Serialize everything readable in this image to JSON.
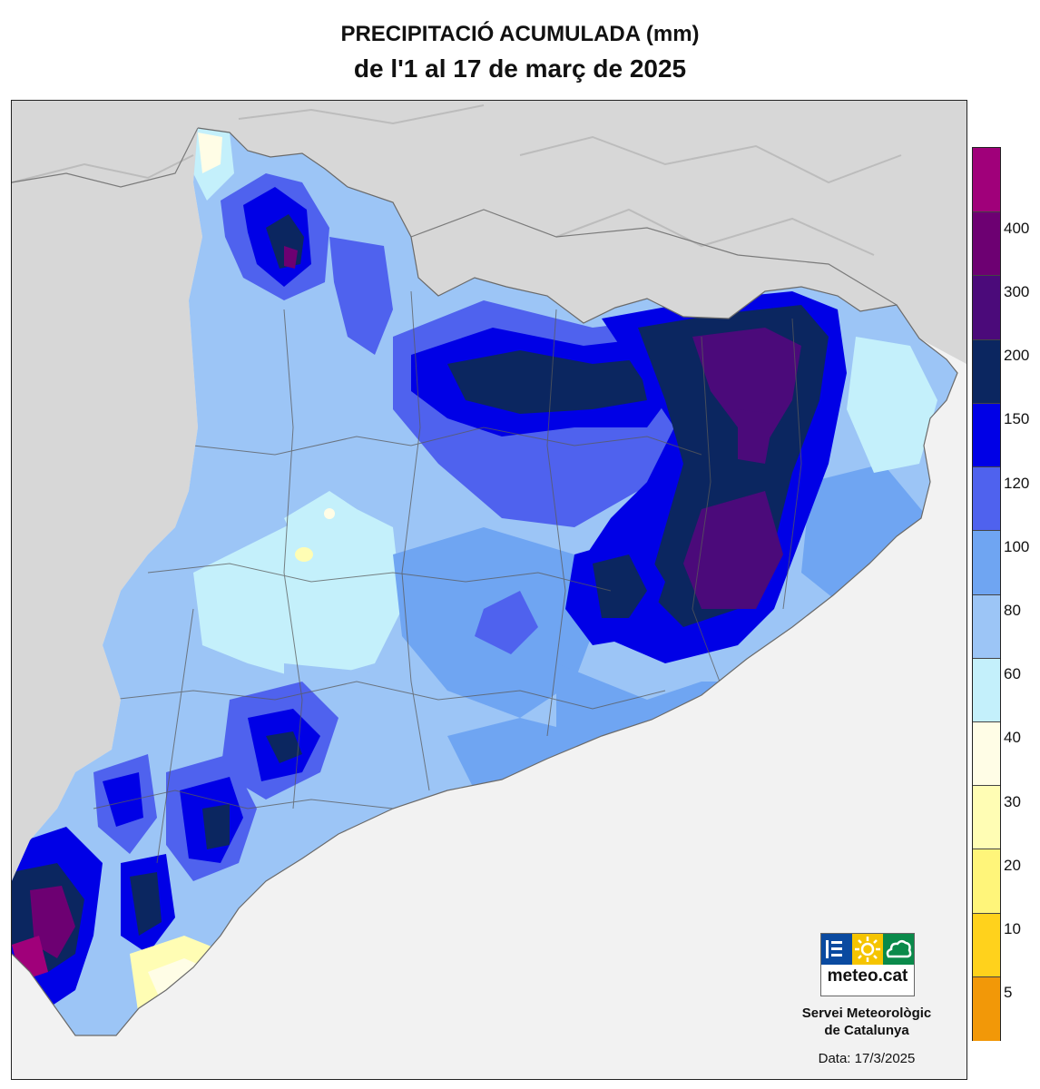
{
  "title": {
    "line1": "PRECIPITACIÓ ACUMULADA (mm)",
    "line2": "de l'1 al 17 de març de 2025"
  },
  "legend": {
    "classes": [
      {
        "label": "",
        "color": "#a0007a"
      },
      {
        "label": "400",
        "color": "#6d0072"
      },
      {
        "label": "300",
        "color": "#4b0a7a"
      },
      {
        "label": "200",
        "color": "#0b2660"
      },
      {
        "label": "150",
        "color": "#0000e6"
      },
      {
        "label": "120",
        "color": "#4f62ee"
      },
      {
        "label": "100",
        "color": "#6fa5f2"
      },
      {
        "label": "80",
        "color": "#9cc5f6"
      },
      {
        "label": "60",
        "color": "#c4f0fb"
      },
      {
        "label": "40",
        "color": "#fffde6"
      },
      {
        "label": "30",
        "color": "#fffdb4"
      },
      {
        "label": "20",
        "color": "#fff57a"
      },
      {
        "label": "10",
        "color": "#ffd21c"
      },
      {
        "label": "5",
        "color": "#f29808"
      }
    ]
  },
  "logo": {
    "text": "meteo.cat",
    "colors": {
      "left": "#0a4aa0",
      "middle": "#f5c400",
      "right": "#0a8a4a"
    }
  },
  "org": {
    "line1": "Servei Meteorològic",
    "line2": "de Catalunya"
  },
  "date": "Data: 17/3/2025"
}
